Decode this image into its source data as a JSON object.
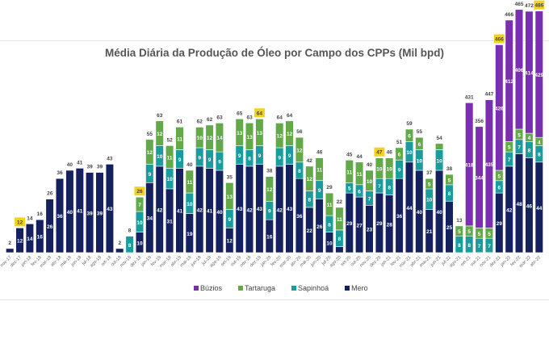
{
  "chart_data": {
    "type": "bar",
    "stacked": true,
    "title": "Média Diária da Produção de Óleo por Campo dos CPPs (Mil bpd)",
    "xlabel": "",
    "ylabel": "",
    "ylim": [
      0,
      500
    ],
    "grid": false,
    "legend_position": "bottom",
    "categories": [
      "nov-17",
      "dez-17",
      "jan-18",
      "fev-18",
      "mar-18",
      "abr-18",
      "mai-18",
      "jun-18",
      "jul-18",
      "ago-18",
      "set-18",
      "out-18",
      "nov-18",
      "dez-18",
      "jan-19",
      "fev-19",
      "mar-19",
      "abr-19",
      "mai-19",
      "jun-19",
      "jul-19",
      "ago-19",
      "set-19",
      "out-19",
      "nov-19",
      "dez-19",
      "jan-20",
      "fev-20",
      "mar-20",
      "abr-20",
      "mai-20",
      "jun-20",
      "jul-20",
      "ago-20",
      "set-20",
      "out-20",
      "nov-20",
      "dez-20",
      "jan-21",
      "fev-21",
      "mar-21",
      "abr-21",
      "mai-21",
      "jun-21",
      "jul-21",
      "ago-21",
      "set-21",
      "out-21",
      "nov-21",
      "dez-21",
      "jan-22",
      "fev-22",
      "mar-22",
      "abr-22"
    ],
    "series": [
      {
        "name": "Mero",
        "color": "#14215e",
        "values": [
          2,
          12,
          14,
          16,
          26,
          36,
          40,
          41,
          39,
          39,
          43,
          2,
          0,
          10,
          34,
          42,
          31,
          41,
          19,
          42,
          41,
          40,
          12,
          43,
          42,
          43,
          16,
          42,
          43,
          36,
          22,
          26,
          10,
          3,
          29,
          27,
          23,
          29,
          28,
          36,
          44,
          40,
          21,
          40,
          25,
          0,
          0,
          0,
          0,
          29,
          42,
          48,
          46,
          44
        ]
      },
      {
        "name": "Sapinhoá",
        "color": "#1a9b9c",
        "values": [
          0,
          0,
          0,
          0,
          0,
          0,
          0,
          0,
          0,
          0,
          0,
          0,
          8,
          10,
          9,
          10,
          10,
          9,
          10,
          9,
          9,
          9,
          9,
          9,
          8,
          9,
          9,
          9,
          9,
          8,
          8,
          9,
          8,
          8,
          5,
          6,
          7,
          7,
          8,
          9,
          10,
          10,
          10,
          10,
          8,
          8,
          8,
          7,
          7,
          6,
          7,
          7,
          8,
          8
        ]
      },
      {
        "name": "Tartaruga",
        "color": "#63a94a",
        "values": [
          0,
          0,
          0,
          0,
          0,
          0,
          0,
          0,
          0,
          0,
          0,
          0,
          0,
          7,
          12,
          12,
          11,
          11,
          11,
          10,
          12,
          14,
          13,
          13,
          13,
          13,
          12,
          12,
          12,
          12,
          12,
          11,
          11,
          11,
          11,
          11,
          10,
          10,
          10,
          6,
          6,
          6,
          5,
          3,
          5,
          5,
          5,
          5,
          5,
          5,
          5,
          5,
          4,
          4
        ]
      },
      {
        "name": "Búzios",
        "color": "#7a2fb0",
        "values": [
          0,
          0,
          0,
          0,
          0,
          0,
          0,
          0,
          0,
          0,
          0,
          0,
          0,
          0,
          0,
          0,
          0,
          0,
          0,
          0,
          0,
          0,
          0,
          0,
          0,
          0,
          0,
          0,
          0,
          0,
          0,
          0,
          0,
          0,
          0,
          0,
          0,
          0,
          0,
          0,
          0,
          0,
          0,
          0,
          0,
          0,
          418,
          344,
          435,
          426,
          412,
          406,
          414,
          429
        ]
      }
    ],
    "totals": [
      2,
      12,
      14,
      16,
      26,
      36,
      40,
      41,
      39,
      39,
      43,
      2,
      8,
      26,
      55,
      63,
      52,
      61,
      40,
      62,
      62,
      63,
      35,
      65,
      63,
      64,
      38,
      64,
      64,
      56,
      42,
      46,
      29,
      22,
      45,
      44,
      40,
      47,
      46,
      51,
      59,
      55,
      37,
      54,
      38,
      13,
      431,
      356,
      447,
      466,
      466,
      465,
      472,
      486
    ],
    "highlighted_totals": [
      "dez-17",
      "dez-18",
      "dez-19",
      "dez-20",
      "dez-21",
      "abr-22"
    ],
    "highlight_color": "#f2d21b",
    "legend": [
      "Búzios",
      "Tartaruga",
      "Sapinhoá",
      "Mero"
    ]
  }
}
